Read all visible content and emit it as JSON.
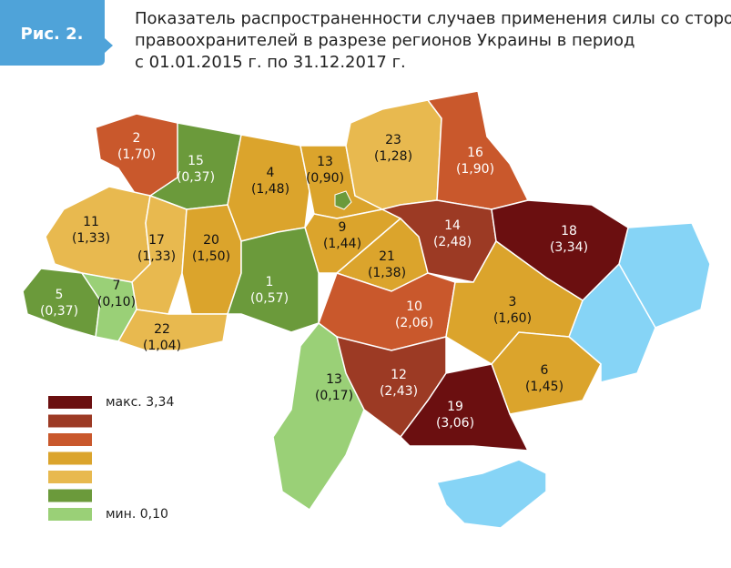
{
  "header": {
    "figure_label": "Рис. 2.",
    "title_lines": [
      "Показатель распространенности случаев применения силы со стороны",
      "правоохранителей в разрезе регионов Украины в период",
      "с 01.01.2015 г. по 31.12.2017 г."
    ]
  },
  "regions": [
    {
      "rank": 2,
      "value": "(1,70)",
      "color": "#c9582c"
    },
    {
      "rank": 15,
      "value": "(0,37)",
      "color": "#6b9a3b"
    },
    {
      "rank": 4,
      "value": "(1,48)",
      "color": "#dba42c"
    },
    {
      "rank": 13,
      "value": "(0,90)",
      "color": "#dba42c"
    },
    {
      "rank": 23,
      "value": "(1,28)",
      "color": "#e8b94f"
    },
    {
      "rank": 16,
      "value": "(1,90)",
      "color": "#c9582c"
    },
    {
      "rank": 11,
      "value": "(1,33)",
      "color": "#e8b94f"
    },
    {
      "rank": 17,
      "value": "(1,33)",
      "color": "#e8b94f"
    },
    {
      "rank": 20,
      "value": "(1,50)",
      "color": "#dba42c"
    },
    {
      "rank": 9,
      "value": "(1,44)",
      "color": "#dba42c"
    },
    {
      "rank": 21,
      "value": "(1,38)",
      "color": "#dba42c"
    },
    {
      "rank": 14,
      "value": "(2,48)",
      "color": "#9c3a24"
    },
    {
      "rank": 18,
      "value": "(3,34)",
      "color": "#6b0f10"
    },
    {
      "rank": 5,
      "value": "(0,37)",
      "color": "#6b9a3b"
    },
    {
      "rank": 7,
      "value": "(0,10)",
      "color": "#9ad077"
    },
    {
      "rank": 1,
      "value": "(0,57)",
      "color": "#6b9a3b"
    },
    {
      "rank": 22,
      "value": "(1,04)",
      "color": "#e8b94f"
    },
    {
      "rank": 10,
      "value": "(2,06)",
      "color": "#c9582c"
    },
    {
      "rank": 3,
      "value": "(1,60)",
      "color": "#dba42c"
    },
    {
      "rank": 13,
      "value": "(0,17)",
      "color": "#9ad077"
    },
    {
      "rank": 12,
      "value": "(2,43)",
      "color": "#9c3a24"
    },
    {
      "rank": 6,
      "value": "(1,45)",
      "color": "#dba42c"
    },
    {
      "rank": 19,
      "value": "(3,06)",
      "color": "#6b0f10"
    }
  ],
  "legend": {
    "colors": [
      "#6b0f10",
      "#9c3a24",
      "#c9582c",
      "#dba42c",
      "#e8b94f",
      "#6b9a3b",
      "#9ad077"
    ],
    "max_label": "макс. 3,34",
    "min_label": "мин. 0,10"
  }
}
